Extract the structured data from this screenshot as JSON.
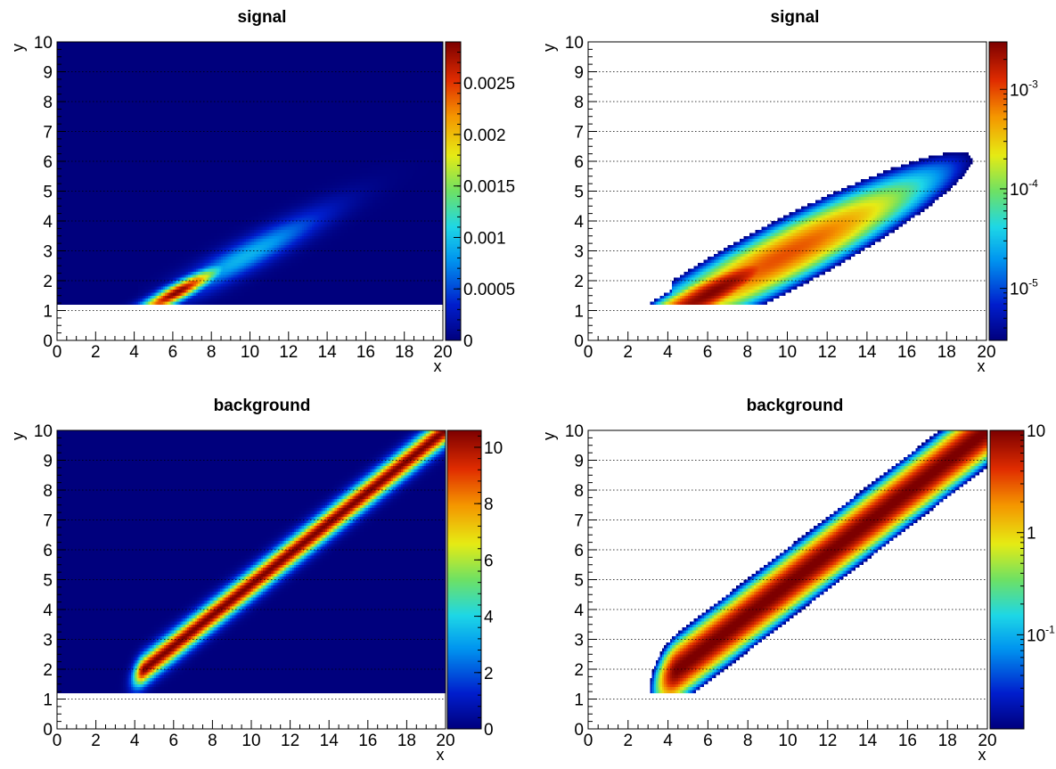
{
  "chart_data": [
    {
      "type": "heatmap",
      "title": "signal",
      "xlabel": "x",
      "ylabel": "y",
      "xlim": [
        0,
        20
      ],
      "ylim": [
        0,
        10
      ],
      "x_ticks": [
        "0",
        "2",
        "4",
        "6",
        "8",
        "10",
        "12",
        "14",
        "16",
        "18",
        "20"
      ],
      "y_ticks": [
        "0",
        "1",
        "2",
        "3",
        "4",
        "5",
        "6",
        "7",
        "8",
        "9",
        "10"
      ],
      "z_scale": "linear",
      "z_range": [
        0,
        0.0029
      ],
      "z_ticks": [
        "0",
        "0.0005",
        "0.001",
        "0.0015",
        "0.002",
        "0.0025"
      ],
      "z_tick_values": [
        0,
        0.0005,
        0.001,
        0.0015,
        0.002,
        0.0025
      ],
      "peak": {
        "x": 6.2,
        "y": 1.6,
        "value": 0.0029
      },
      "empty_below_y": 1.2,
      "grid_y": true
    },
    {
      "type": "heatmap",
      "title": "signal",
      "xlabel": "x",
      "ylabel": "y",
      "xlim": [
        0,
        20
      ],
      "ylim": [
        0,
        10
      ],
      "x_ticks": [
        "0",
        "2",
        "4",
        "6",
        "8",
        "10",
        "12",
        "14",
        "16",
        "18",
        "20"
      ],
      "y_ticks": [
        "0",
        "1",
        "2",
        "3",
        "4",
        "5",
        "6",
        "7",
        "8",
        "9",
        "10"
      ],
      "z_scale": "log",
      "z_range": [
        3e-06,
        0.003
      ],
      "z_ticks": [
        {
          "base": "10",
          "exp": "-5"
        },
        {
          "base": "10",
          "exp": "-4"
        },
        {
          "base": "10",
          "exp": "-3"
        }
      ],
      "z_tick_values": [
        1e-05,
        0.0001,
        0.001
      ],
      "peak": {
        "x": 6.2,
        "y": 1.6,
        "value": 0.0029
      },
      "empty_below_y": 1.2,
      "grid_y": true
    },
    {
      "type": "heatmap",
      "title": "background",
      "xlabel": "x",
      "ylabel": "y",
      "xlim": [
        0,
        20
      ],
      "ylim": [
        0,
        10
      ],
      "x_ticks": [
        "0",
        "2",
        "4",
        "6",
        "8",
        "10",
        "12",
        "14",
        "16",
        "18",
        "20"
      ],
      "y_ticks": [
        "0",
        "1",
        "2",
        "3",
        "4",
        "5",
        "6",
        "7",
        "8",
        "9",
        "10"
      ],
      "z_scale": "linear",
      "z_range": [
        0,
        10.6
      ],
      "z_ticks": [
        "0",
        "2",
        "4",
        "6",
        "8",
        "10"
      ],
      "z_tick_values": [
        0,
        2,
        4,
        6,
        8,
        10
      ],
      "ridge": {
        "from": [
          4.5,
          2.0
        ],
        "to": [
          20,
          10
        ],
        "peak_value": 10.6
      },
      "empty_below_y": 1.2,
      "grid_y": true
    },
    {
      "type": "heatmap",
      "title": "background",
      "xlabel": "x",
      "ylabel": "y",
      "xlim": [
        0,
        20
      ],
      "ylim": [
        0,
        10
      ],
      "x_ticks": [
        "0",
        "2",
        "4",
        "6",
        "8",
        "10",
        "12",
        "14",
        "16",
        "18",
        "20"
      ],
      "y_ticks": [
        "0",
        "1",
        "2",
        "3",
        "4",
        "5",
        "6",
        "7",
        "8",
        "9",
        "10"
      ],
      "z_scale": "log",
      "z_range": [
        0.012,
        10
      ],
      "z_ticks": [
        {
          "base": "10",
          "exp": "-1"
        },
        {
          "base": "1",
          "exp": ""
        },
        {
          "base": "10",
          "exp": ""
        }
      ],
      "z_tick_values": [
        0.1,
        1,
        10
      ],
      "ridge": {
        "from": [
          4.5,
          2.0
        ],
        "to": [
          20,
          10
        ],
        "peak_value": 10.6
      },
      "empty_below_y": 1.2,
      "grid_y": true
    }
  ]
}
